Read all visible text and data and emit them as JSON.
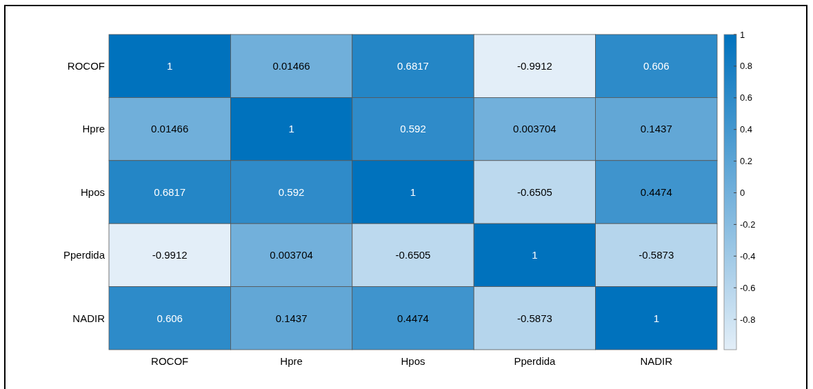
{
  "chart_data": {
    "type": "heatmap",
    "categories": [
      "ROCOF",
      "Hpre",
      "Hpos",
      "Pperdida",
      "NADIR"
    ],
    "y_categories": [
      "ROCOF",
      "Hpre",
      "Hpos",
      "Pperdida",
      "NADIR"
    ],
    "cells": [
      [
        1,
        0.01466,
        0.6817,
        -0.9912,
        0.606
      ],
      [
        0.01466,
        1,
        0.592,
        0.003704,
        0.1437
      ],
      [
        0.6817,
        0.592,
        1,
        -0.6505,
        0.4474
      ],
      [
        -0.9912,
        0.003704,
        -0.6505,
        1,
        -0.5873
      ],
      [
        0.606,
        0.1437,
        0.4474,
        -0.5873,
        1
      ]
    ],
    "data_labels": true,
    "clim": [
      -0.9912,
      1
    ],
    "cticks": [
      -0.8,
      -0.6,
      -0.4,
      -0.2,
      0,
      0.2,
      0.4,
      0.6,
      0.8,
      1
    ]
  }
}
